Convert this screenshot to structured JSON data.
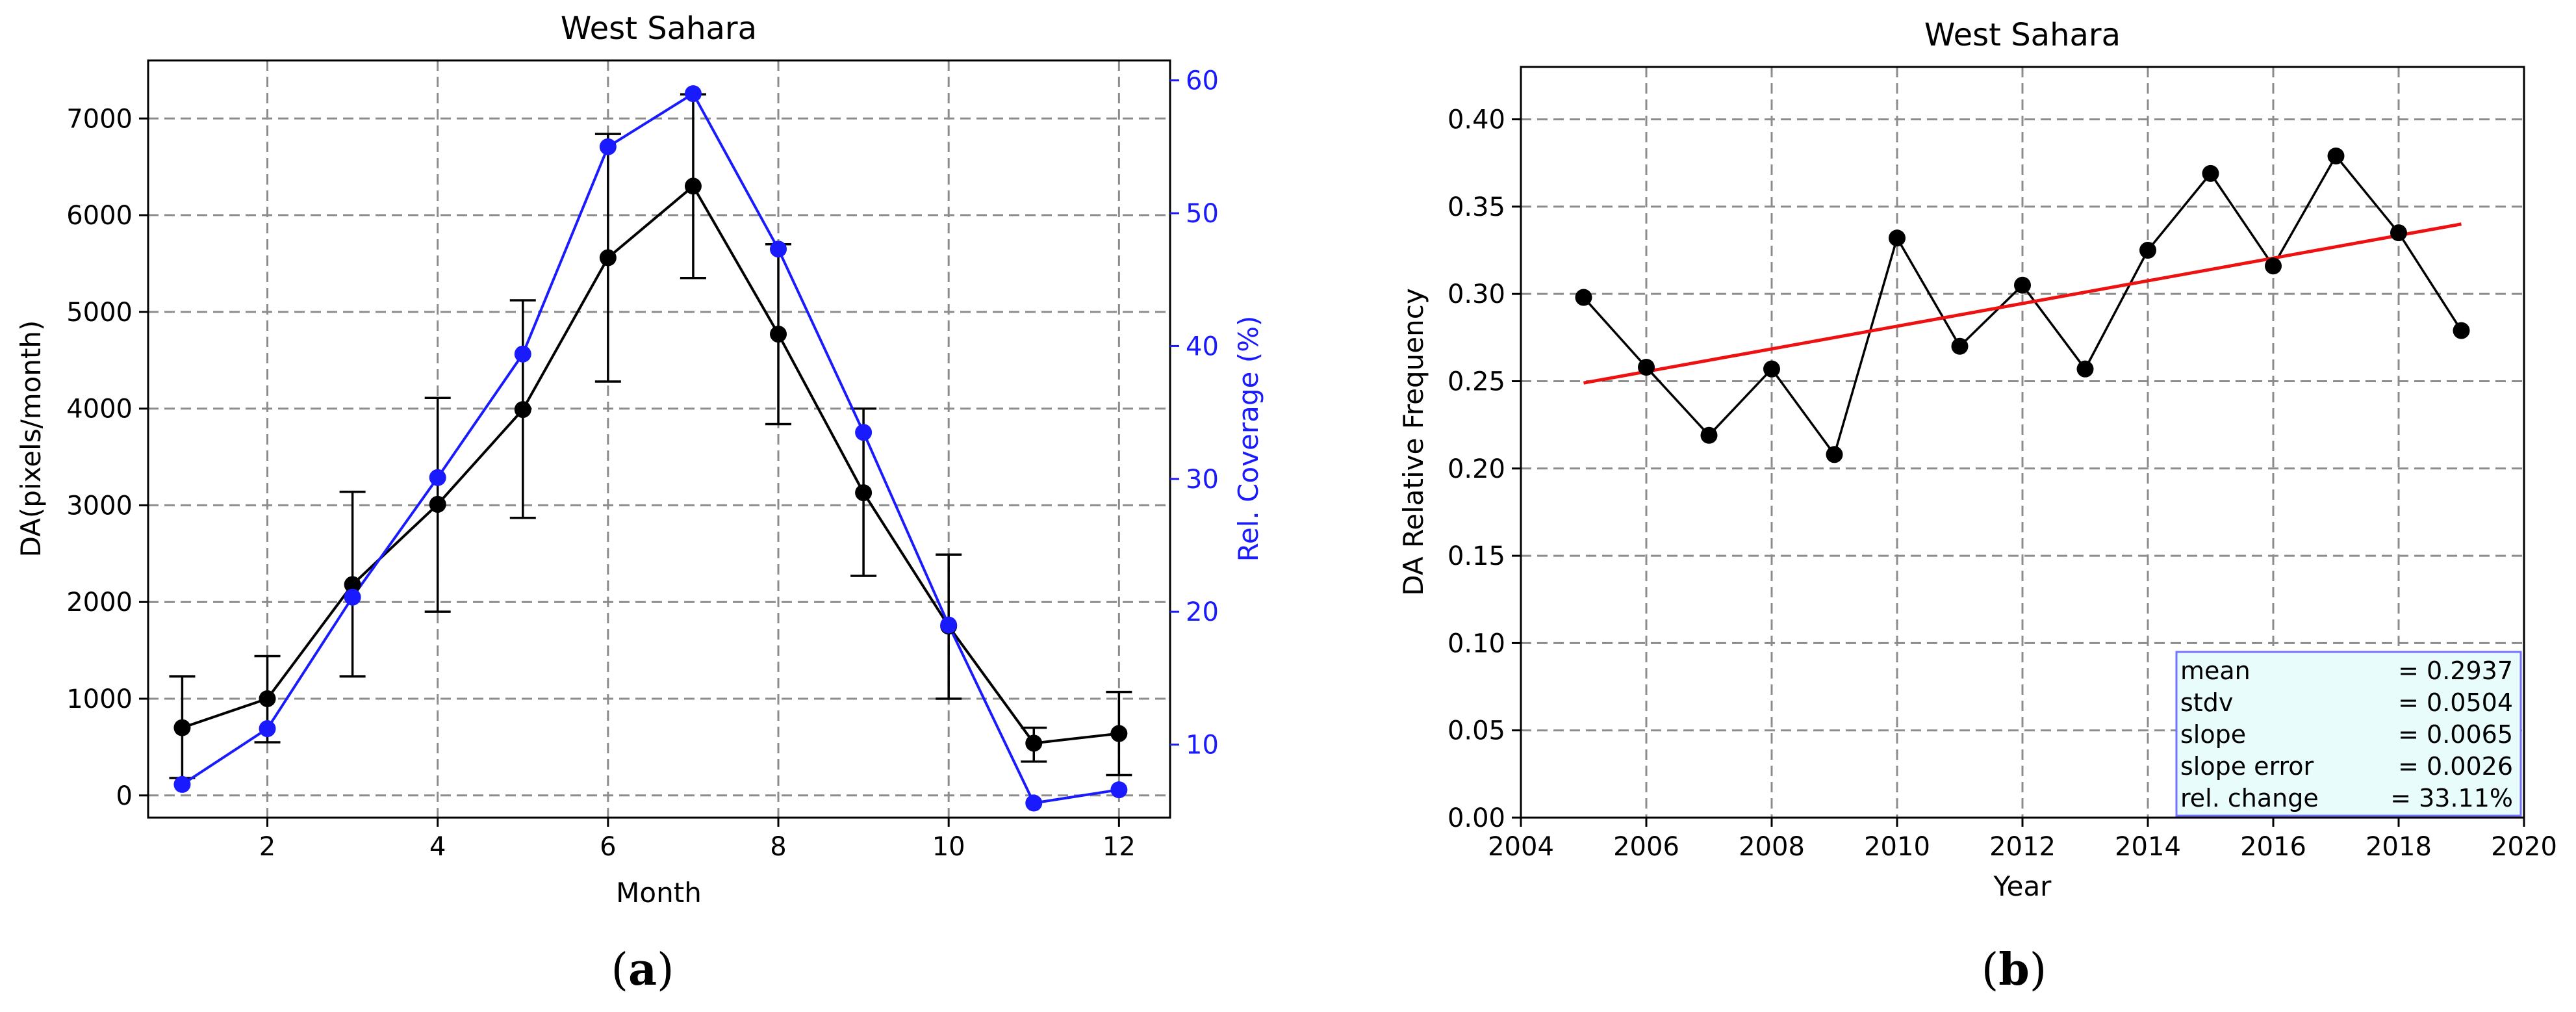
{
  "chart_data": [
    {
      "type": "line",
      "panel_label": "(a)",
      "title": "West Sahara",
      "xlabel": "Month",
      "ylabel": "DA(pixels/month)",
      "y2label": "Rel. Coverage (%)",
      "xlim": [
        0.6,
        12.6
      ],
      "ylim": [
        -230,
        7600
      ],
      "y2lim": [
        4.5,
        61.5
      ],
      "xticks": [
        2,
        4,
        6,
        8,
        10,
        12
      ],
      "yticks": [
        0,
        1000,
        2000,
        3000,
        4000,
        5000,
        6000,
        7000
      ],
      "y2ticks": [
        10,
        20,
        30,
        40,
        50,
        60
      ],
      "grid": true,
      "series": [
        {
          "name": "DA",
          "axis": "left",
          "color": "#000000",
          "x": [
            1,
            2,
            3,
            4,
            5,
            6,
            7,
            8,
            9,
            10,
            11,
            12
          ],
          "values": [
            700,
            1000,
            2180,
            3010,
            3990,
            5560,
            6300,
            4770,
            3130,
            1750,
            540,
            640
          ],
          "err_low": [
            180,
            550,
            1230,
            1900,
            2870,
            4280,
            5350,
            3840,
            2270,
            1000,
            350,
            210
          ],
          "err_high": [
            1230,
            1440,
            3140,
            4110,
            5120,
            6840,
            7250,
            5700,
            4000,
            2490,
            700,
            1070
          ]
        },
        {
          "name": "Rel. Coverage",
          "axis": "right",
          "color": "#1a1aff",
          "x": [
            1,
            2,
            3,
            4,
            5,
            6,
            7,
            8,
            9,
            10,
            11,
            12
          ],
          "values": [
            7,
            11.2,
            21.1,
            30.1,
            39.4,
            55,
            59,
            47.3,
            33.5,
            19,
            5.6,
            6.6
          ]
        }
      ]
    },
    {
      "type": "line",
      "panel_label": "(b)",
      "title": "West Sahara",
      "xlabel": "Year",
      "ylabel": "DA Relative Frequency",
      "xlim": [
        2004,
        2020
      ],
      "ylim": [
        0,
        0.43
      ],
      "xticks": [
        2004,
        2006,
        2008,
        2010,
        2012,
        2014,
        2016,
        2018,
        2020
      ],
      "yticks": [
        "0.00",
        "0.05",
        "0.10",
        "0.15",
        "0.20",
        "0.25",
        "0.30",
        "0.35",
        "0.40"
      ],
      "grid": true,
      "series": [
        {
          "name": "DA relative frequency",
          "color": "#000000",
          "x": [
            2005,
            2006,
            2007,
            2008,
            2009,
            2010,
            2011,
            2012,
            2013,
            2014,
            2015,
            2016,
            2017,
            2018,
            2019
          ],
          "values": [
            0.298,
            0.258,
            0.219,
            0.257,
            0.208,
            0.332,
            0.27,
            0.305,
            0.257,
            0.325,
            0.369,
            0.316,
            0.379,
            0.335,
            0.279
          ]
        },
        {
          "name": "trend",
          "color": "#ee1111",
          "x": [
            2005,
            2019
          ],
          "values": [
            0.249,
            0.34
          ]
        }
      ],
      "stats": [
        {
          "label": "mean",
          "value": "= 0.2937"
        },
        {
          "label": "stdv",
          "value": "= 0.0504"
        },
        {
          "label": "slope",
          "value": "= 0.0065"
        },
        {
          "label": "slope error",
          "value": "= 0.0026"
        },
        {
          "label": "rel. change",
          "value": "= 33.11%"
        }
      ],
      "stats_box_fill": "#e8fcfc",
      "stats_box_border": "#7373ff"
    }
  ]
}
